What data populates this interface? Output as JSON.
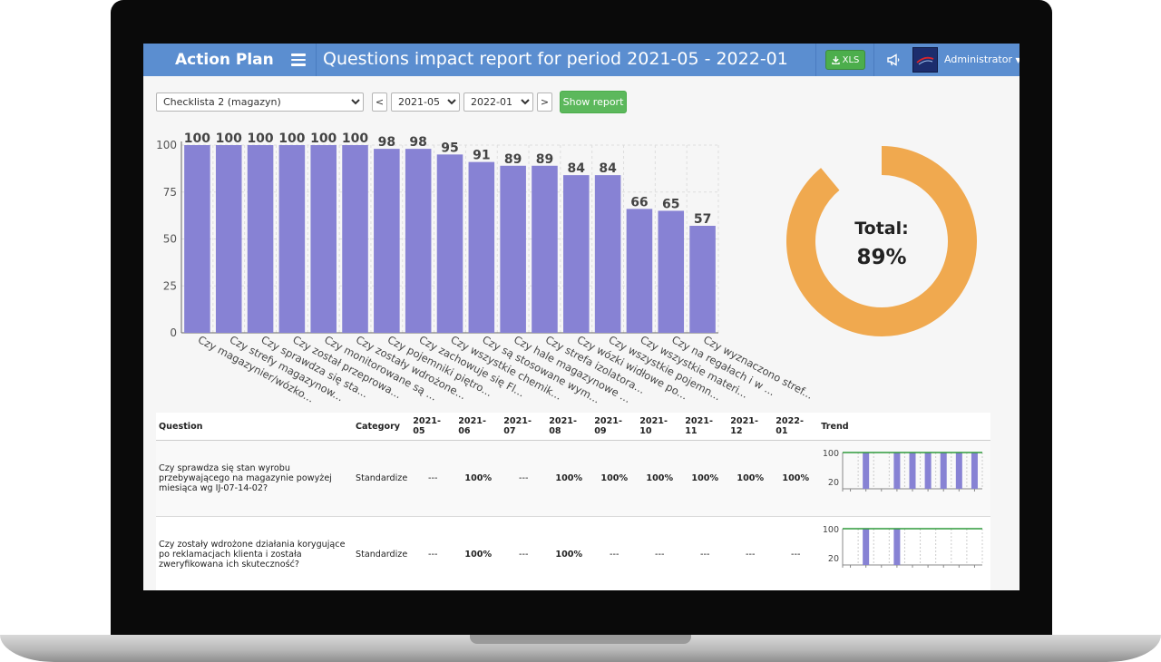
{
  "app": {
    "brand": "Action Plan",
    "title": "Questions impact report for period 2021-05 - 2022-01",
    "xls_label": "XLS",
    "user": "Administrator"
  },
  "filters": {
    "checklist": "Checklista 2 (magazyn)",
    "prev": "<",
    "next": ">",
    "from": "2021-05",
    "to": "2022-01",
    "show_report": "Show report"
  },
  "chart_data": {
    "type": "bar",
    "categories": [
      "Czy magazynier/wózko...",
      "Czy strefy magazynow...",
      "Czy sprawdza się sta...",
      "Czy został przeprowa...",
      "Czy monitorowane są ...",
      "Czy zostały wdrożone...",
      "Czy pojemniki piętro...",
      "Czy zachowuje się Fl...",
      "Czy wszystkie chemik...",
      "Czy są stosowane wym...",
      "Czy hale magazynowe ...",
      "Czy strefa izolatora...",
      "Czy wózki widłowe po...",
      "Czy wszystkie pojemn...",
      "Czy wszystkie materi...",
      "Czy na regałach i w ...",
      "Czy wyznaczono stref..."
    ],
    "values": [
      100,
      100,
      100,
      100,
      100,
      100,
      98,
      98,
      95,
      91,
      89,
      89,
      84,
      84,
      66,
      65,
      57
    ],
    "ylim": [
      0,
      100
    ],
    "yticks": [
      0,
      25,
      50,
      75,
      100
    ],
    "bar_color": "#8782d4"
  },
  "donut": {
    "label": "Total:",
    "value_text": "89%",
    "value": 89,
    "color": "#f0a94f"
  },
  "table": {
    "headers": [
      "Question",
      "Category",
      "2021-05",
      "2021-06",
      "2021-07",
      "2021-08",
      "2021-09",
      "2021-10",
      "2021-11",
      "2021-12",
      "2022-01",
      "Trend"
    ],
    "rows": [
      {
        "question": "Czy sprawdza się stan wyrobu przebywającego na magazynie powyżej miesiąca wg IJ-07-14-02?",
        "category": "Standardize",
        "cells": [
          "---",
          "100%",
          "---",
          "100%",
          "100%",
          "100%",
          "100%",
          "100%",
          "100%"
        ],
        "trend": [
          0,
          100,
          0,
          100,
          100,
          100,
          100,
          100,
          100
        ],
        "trend_ticks": [
          "100",
          "20"
        ]
      },
      {
        "question": "Czy zostały wdrożone działania korygujące po reklamacjach klienta i została zweryfikowana ich skuteczność?",
        "category": "Standardize",
        "cells": [
          "---",
          "100%",
          "---",
          "100%",
          "---",
          "---",
          "---",
          "---",
          "---"
        ],
        "trend": [
          0,
          100,
          0,
          100,
          0,
          0,
          0,
          0,
          0
        ],
        "trend_ticks": [
          "100",
          "20"
        ]
      }
    ]
  }
}
